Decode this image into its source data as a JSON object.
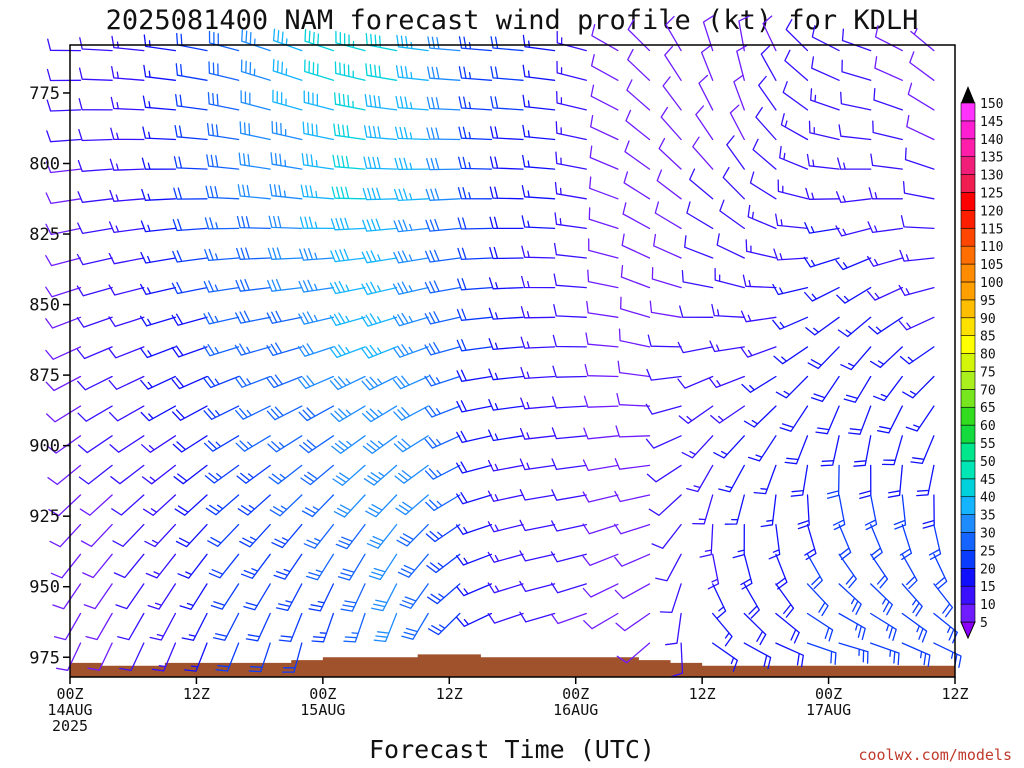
{
  "chart_data": {
    "type": "wind-barb profile",
    "title": "2025081400 NAM forecast wind profile (kt) for KDLH",
    "xlabel": "Forecast Time (UTC)",
    "ylabel": "",
    "credit": "coolwx.com/models",
    "y_ticks": [
      "775",
      "800",
      "825",
      "850",
      "875",
      "900",
      "925",
      "950",
      "975"
    ],
    "ylim_hpa": [
      758,
      982
    ],
    "xlim_hours": [
      0,
      84
    ],
    "x_ticks": [
      {
        "hour": 0,
        "line1": "00Z",
        "line2": "14AUG",
        "line3": "2025"
      },
      {
        "hour": 12,
        "line1": "12Z",
        "line2": "",
        "line3": ""
      },
      {
        "hour": 24,
        "line1": "00Z",
        "line2": "15AUG",
        "line3": ""
      },
      {
        "hour": 36,
        "line1": "12Z",
        "line2": "",
        "line3": ""
      },
      {
        "hour": 48,
        "line1": "00Z",
        "line2": "16AUG",
        "line3": ""
      },
      {
        "hour": 60,
        "line1": "12Z",
        "line2": "",
        "line3": ""
      },
      {
        "hour": 72,
        "line1": "00Z",
        "line2": "17AUG",
        "line3": ""
      },
      {
        "hour": 84,
        "line1": "12Z",
        "line2": "",
        "line3": ""
      }
    ],
    "colorbar": {
      "levels": [
        "5",
        "10",
        "15",
        "20",
        "25",
        "30",
        "35",
        "40",
        "45",
        "50",
        "55",
        "60",
        "65",
        "70",
        "75",
        "80",
        "85",
        "90",
        "95",
        "100",
        "105",
        "110",
        "115",
        "120",
        "125",
        "130",
        "135",
        "140",
        "145",
        "150"
      ],
      "colors": [
        "#8b00ff",
        "#6f1cff",
        "#3a10ff",
        "#1010ff",
        "#0a3cff",
        "#1464ff",
        "#1e8cff",
        "#14b4ff",
        "#00d2dc",
        "#00e6b4",
        "#00e68c",
        "#14dc3c",
        "#32dc1e",
        "#78e61e",
        "#aaf01e",
        "#d2f50a",
        "#ffff00",
        "#ffe100",
        "#ffbe00",
        "#ffa000",
        "#ff8c00",
        "#ff6e00",
        "#ff4600",
        "#ff1e00",
        "#ff0000",
        "#f01e50",
        "#f01e78",
        "#ff1eaa",
        "#ff1ed2",
        "#ff32ff"
      ]
    },
    "ground_surface_hpa": [
      {
        "hour": 0,
        "p": 977
      },
      {
        "hour": 3,
        "p": 978
      },
      {
        "hour": 6,
        "p": 978
      },
      {
        "hour": 9,
        "p": 977
      },
      {
        "hour": 12,
        "p": 977
      },
      {
        "hour": 15,
        "p": 977
      },
      {
        "hour": 18,
        "p": 977
      },
      {
        "hour": 21,
        "p": 976
      },
      {
        "hour": 24,
        "p": 975
      },
      {
        "hour": 27,
        "p": 975
      },
      {
        "hour": 30,
        "p": 975
      },
      {
        "hour": 33,
        "p": 974
      },
      {
        "hour": 36,
        "p": 974
      },
      {
        "hour": 39,
        "p": 975
      },
      {
        "hour": 42,
        "p": 975
      },
      {
        "hour": 45,
        "p": 975
      },
      {
        "hour": 48,
        "p": 975
      },
      {
        "hour": 51,
        "p": 975
      },
      {
        "hour": 54,
        "p": 976
      },
      {
        "hour": 57,
        "p": 977
      },
      {
        "hour": 60,
        "p": 978
      },
      {
        "hour": 63,
        "p": 978
      },
      {
        "hour": 66,
        "p": 978
      },
      {
        "hour": 69,
        "p": 978
      },
      {
        "hour": 72,
        "p": 978
      },
      {
        "hour": 75,
        "p": 978
      },
      {
        "hour": 78,
        "p": 978
      },
      {
        "hour": 81,
        "p": 978
      },
      {
        "hour": 84,
        "p": 978
      }
    ],
    "wind_profile": [
      {
        "hour": 0,
        "dir_low": 200,
        "dir_high": 270,
        "spd_low": 8,
        "spd_high": 10
      },
      {
        "hour": 6,
        "dir_low": 200,
        "dir_high": 275,
        "spd_low": 10,
        "spd_high": 12
      },
      {
        "hour": 12,
        "dir_low": 195,
        "dir_high": 280,
        "spd_low": 15,
        "spd_high": 20
      },
      {
        "hour": 16,
        "dir_low": 195,
        "dir_high": 285,
        "spd_low": 20,
        "spd_high": 30
      },
      {
        "hour": 20,
        "dir_low": 190,
        "dir_high": 290,
        "spd_low": 20,
        "spd_high": 35
      },
      {
        "hour": 24,
        "dir_low": 185,
        "dir_high": 290,
        "spd_low": 20,
        "spd_high": 40
      },
      {
        "hour": 28,
        "dir_low": 185,
        "dir_high": 285,
        "spd_low": 25,
        "spd_high": 45
      },
      {
        "hour": 32,
        "dir_low": 190,
        "dir_high": 280,
        "spd_low": 30,
        "spd_high": 40
      },
      {
        "hour": 36,
        "dir_low": 210,
        "dir_high": 275,
        "spd_low": 25,
        "spd_high": 35
      },
      {
        "hour": 40,
        "dir_low": 240,
        "dir_high": 275,
        "spd_low": 15,
        "spd_high": 25
      },
      {
        "hour": 44,
        "dir_low": 250,
        "dir_high": 275,
        "spd_low": 10,
        "spd_high": 20
      },
      {
        "hour": 48,
        "dir_low": 250,
        "dir_high": 280,
        "spd_low": 10,
        "spd_high": 15
      },
      {
        "hour": 52,
        "dir_low": 230,
        "dir_high": 300,
        "spd_low": 8,
        "spd_high": 10
      },
      {
        "hour": 56,
        "dir_low": 220,
        "dir_high": 320,
        "spd_low": 10,
        "spd_high": 8
      },
      {
        "hour": 60,
        "dir_low": 110,
        "dir_high": 340,
        "spd_low": 15,
        "spd_high": 8
      },
      {
        "hour": 64,
        "dir_low": 100,
        "dir_high": 350,
        "spd_low": 20,
        "spd_high": 8
      },
      {
        "hour": 68,
        "dir_low": 95,
        "dir_high": 330,
        "spd_low": 20,
        "spd_high": 10
      },
      {
        "hour": 72,
        "dir_low": 90,
        "dir_high": 300,
        "spd_low": 25,
        "spd_high": 12
      },
      {
        "hour": 76,
        "dir_low": 95,
        "dir_high": 290,
        "spd_low": 25,
        "spd_high": 10
      },
      {
        "hour": 80,
        "dir_low": 100,
        "dir_high": 300,
        "spd_low": 25,
        "spd_high": 8
      },
      {
        "hour": 84,
        "dir_low": 100,
        "dir_high": 320,
        "spd_low": 25,
        "spd_high": 6
      }
    ]
  }
}
